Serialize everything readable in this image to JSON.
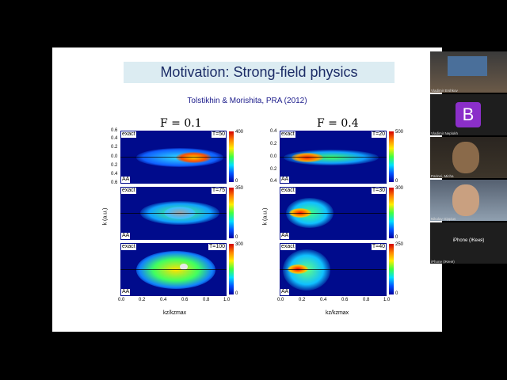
{
  "slide": {
    "title": "Motivation: Strong-field physics",
    "citation": "Tolstikhin & Morishita, PRA (2012)",
    "left_heading": "F = 0.1",
    "right_heading": "F = 0.4",
    "y_axis_label": "k (a.u.)",
    "x_axis_label": "kz/kzmax",
    "panel_top_tag": "exact",
    "panel_bottom_tag": "AA",
    "left_panels": [
      {
        "t": "T=50",
        "cbar": [
          "400",
          "320",
          "240",
          "160",
          "80",
          "0"
        ]
      },
      {
        "t": "T=75",
        "cbar": [
          "350",
          "280",
          "210",
          "140",
          "70",
          "0"
        ]
      },
      {
        "t": "T=100",
        "cbar": [
          "300",
          "240",
          "180",
          "120",
          "60",
          "0"
        ]
      }
    ],
    "right_panels": [
      {
        "t": "T=20",
        "cbar": [
          "500",
          "400",
          "300",
          "200",
          "100",
          "0"
        ]
      },
      {
        "t": "T=30",
        "cbar": [
          "300",
          "240",
          "180",
          "120",
          "60",
          "0"
        ]
      },
      {
        "t": "T=40",
        "cbar": [
          "250",
          "200",
          "150",
          "100",
          "50",
          "0"
        ]
      }
    ],
    "y_ticks_left": [
      "0.6",
      "0.4",
      "0.2",
      "0.0",
      "0.2",
      "0.4",
      "0.6"
    ],
    "y_ticks_right": [
      "0.4",
      "0.3",
      "0.2",
      "0.1",
      "0.0",
      "0.1",
      "0.2",
      "0.3",
      "0.4"
    ],
    "x_ticks": [
      "0.0",
      "0.2",
      "0.4",
      "0.6",
      "0.8",
      "1.0"
    ]
  },
  "participants": [
    {
      "name": "Vladimir Ershkov",
      "kind": "video"
    },
    {
      "name": "Vladimir Neplokh",
      "kind": "avatar",
      "initial": "B",
      "color": "#8b2fc9"
    },
    {
      "name": "Parinei, Micha",
      "kind": "video"
    },
    {
      "name": "Nikolay Gippius",
      "kind": "video"
    },
    {
      "name": "iPhone (Женя)",
      "kind": "label",
      "label": "iPhone (Женя)"
    },
    {
      "name": "iPhone (Женя)",
      "kind": "blank"
    }
  ]
}
